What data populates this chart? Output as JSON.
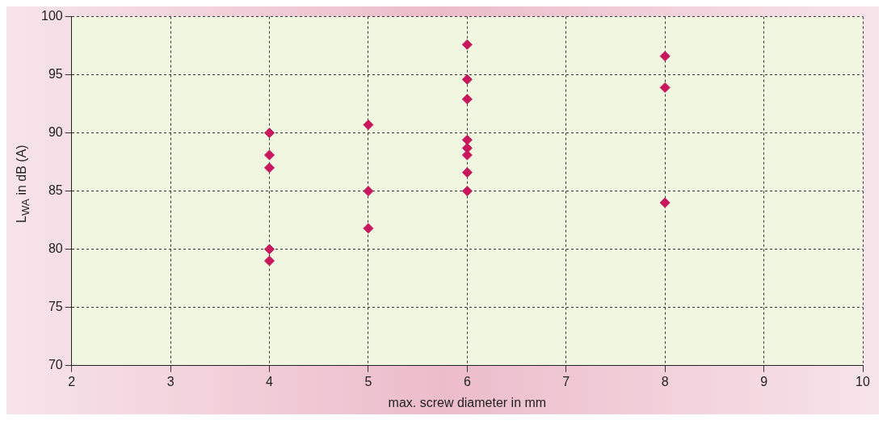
{
  "chart_data": {
    "type": "scatter",
    "xlabel": "max. screw diameter in mm",
    "ylabel": "L$_{WA}$ in dB (A)",
    "x": [
      4,
      4,
      4,
      4,
      4,
      5,
      5,
      5,
      6,
      6,
      6,
      6,
      6,
      6,
      6,
      6,
      8,
      8,
      8
    ],
    "values": [
      90,
      88.1,
      87,
      80,
      79,
      90.7,
      85,
      81.8,
      97.6,
      94.6,
      92.9,
      89.4,
      88.7,
      88.1,
      86.6,
      85,
      96.6,
      93.9,
      84
    ],
    "color": "#c8175d",
    "marker": "diamond",
    "grid": true,
    "legend": false,
    "xlim": [
      2,
      10
    ],
    "xticks": [
      2,
      3,
      4,
      5,
      6,
      7,
      8,
      9,
      10
    ],
    "ylim": [
      70,
      100
    ],
    "yticks": [
      70,
      75,
      80,
      85,
      90,
      95,
      100
    ]
  }
}
